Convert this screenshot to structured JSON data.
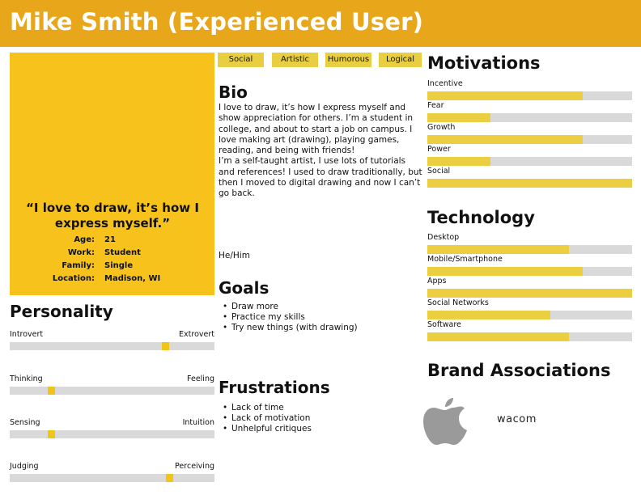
{
  "header": {
    "title": "Mike Smith (Experienced User)",
    "color": "#e8a71b"
  },
  "profile": {
    "quote": "“I love to draw, it’s how I express myself.”",
    "facts": [
      {
        "label": "Age:",
        "value": "21"
      },
      {
        "label": "Work:",
        "value": "Student"
      },
      {
        "label": "Family:",
        "value": "Single"
      },
      {
        "label": "Location:",
        "value": "Madison, WI"
      }
    ]
  },
  "tags": [
    "Social",
    "Artistic",
    "Humorous",
    "Logical"
  ],
  "bio": {
    "title": "Bio",
    "paragraphs": [
      "I love to draw, it’s how I express myself and show appreciation for others. I’m a student in college, and about to start a job on campus. I love making art (drawing), playing games, reading, and being with friends!",
      "I’m a self-taught artist, I use lots of tutorials and references! I used to draw traditionally, but then I moved to digital drawing and now I can’t go back."
    ],
    "pronouns": "He/Him"
  },
  "goals": {
    "title": "Goals",
    "items": [
      "Draw more",
      "Practice my skills",
      "Try new things (with drawing)"
    ]
  },
  "frustrations": {
    "title": "Frustrations",
    "items": [
      "Lack of time",
      "Lack of motivation",
      "Unhelpful critiques"
    ]
  },
  "personality": {
    "title": "Personality",
    "scales": [
      {
        "left": "Introvert",
        "right": "Extrovert",
        "value": 0.76
      },
      {
        "left": "Thinking",
        "right": "Feeling",
        "value": 0.2
      },
      {
        "left": "Sensing",
        "right": "Intuition",
        "value": 0.2
      },
      {
        "left": "Judging",
        "right": "Perceiving",
        "value": 0.78
      }
    ]
  },
  "motivations": {
    "title": "Motivations",
    "bars": [
      {
        "label": "Incentive",
        "value": 0.76
      },
      {
        "label": "Fear",
        "value": 0.31
      },
      {
        "label": "Growth",
        "value": 0.76
      },
      {
        "label": "Power",
        "value": 0.31
      },
      {
        "label": "Social",
        "value": 1.0
      }
    ]
  },
  "technology": {
    "title": "Technology",
    "bars": [
      {
        "label": "Desktop",
        "value": 0.69
      },
      {
        "label": "Mobile/Smartphone",
        "value": 0.76
      },
      {
        "label": "Apps",
        "value": 1.0
      },
      {
        "label": "Social Networks",
        "value": 0.6
      },
      {
        "label": "Software",
        "value": 0.69
      }
    ]
  },
  "brands": {
    "title": "Brand Associations",
    "logos": [
      {
        "name": "apple-logo"
      },
      {
        "name": "wacom-logo",
        "text": "wacom"
      }
    ]
  },
  "colors": {
    "accent": "#f7c21c",
    "bar_fill": "#ebcf40",
    "track": "#d9d9d9"
  }
}
